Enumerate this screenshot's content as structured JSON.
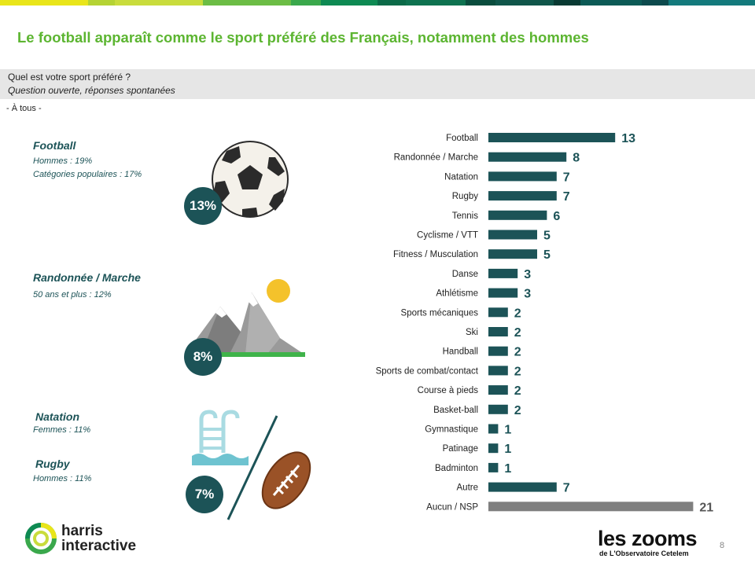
{
  "colors": {
    "accent": "#5cb531",
    "teal": "#1c5357",
    "bar": "#1c5357",
    "bar_none": "#7f7f7f",
    "question_bg": "#e6e6e6"
  },
  "header": {
    "title": "Le football apparaît comme le sport préféré des Français, notamment des hommes"
  },
  "question": {
    "line1": "Quel est votre sport préféré ?",
    "line2": "Question ouverte, réponses spontanées",
    "base": "- À tous -"
  },
  "highlights": [
    {
      "title": "Football",
      "notes": [
        "Hommes : 19%",
        "Catégories populaires : 17%"
      ],
      "pct": "13%",
      "icon": "soccer-ball-icon"
    },
    {
      "title": "Randonnée / Marche",
      "notes": [
        "50 ans et plus : 12%"
      ],
      "pct": "8%",
      "icon": "mountain-icon"
    },
    {
      "title": "Natation",
      "notes": [
        "Femmes : 11%"
      ],
      "pct": "7%",
      "icon": "swimming-pool-icon"
    },
    {
      "title": "Rugby",
      "notes": [
        "Hommes : 11%"
      ],
      "icon": "rugby-ball-icon"
    }
  ],
  "chart_data": {
    "type": "bar",
    "orientation": "horizontal",
    "categories": [
      "Football",
      "Randonnée / Marche",
      "Natation",
      "Rugby",
      "Tennis",
      "Cyclisme / VTT",
      "Fitness / Musculation",
      "Danse",
      "Athlétisme",
      "Sports mécaniques",
      "Ski",
      "Handball",
      "Sports de combat/contact",
      "Course à pieds",
      "Basket-ball",
      "Gymnastique",
      "Patinage",
      "Badminton",
      "Autre",
      "Aucun / NSP"
    ],
    "values": [
      13,
      8,
      7,
      7,
      6,
      5,
      5,
      3,
      3,
      2,
      2,
      2,
      2,
      2,
      2,
      1,
      1,
      1,
      7,
      21
    ],
    "highlight_last": true
  },
  "footer": {
    "page_number": "8",
    "harris_line1": "harris",
    "harris_line2": "interactive",
    "zooms_brand": "les zooms",
    "zooms_sub": "de L'Observatoire Cetelem"
  }
}
